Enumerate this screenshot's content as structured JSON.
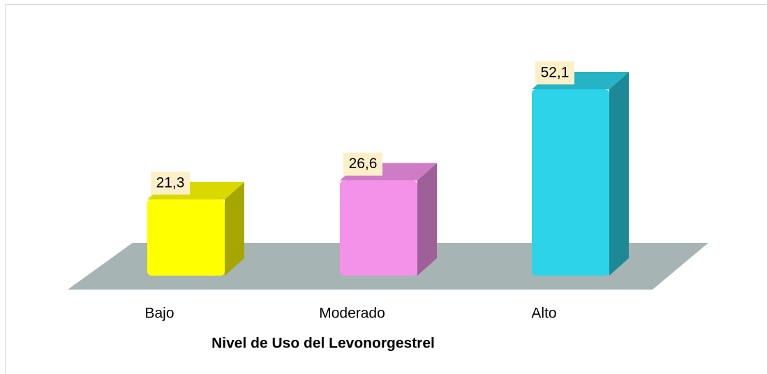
{
  "chart_data": {
    "type": "bar3d",
    "categories": [
      "Bajo",
      "Moderado",
      "Alto"
    ],
    "values": [
      21.3,
      26.6,
      52.1
    ],
    "value_labels": [
      "21,3",
      "26,6",
      "52,1"
    ],
    "colors": [
      "#ffff00",
      "#f492ea",
      "#2dd3e8"
    ],
    "x_label": "Nivel de Uso del Levonorgestrel"
  }
}
